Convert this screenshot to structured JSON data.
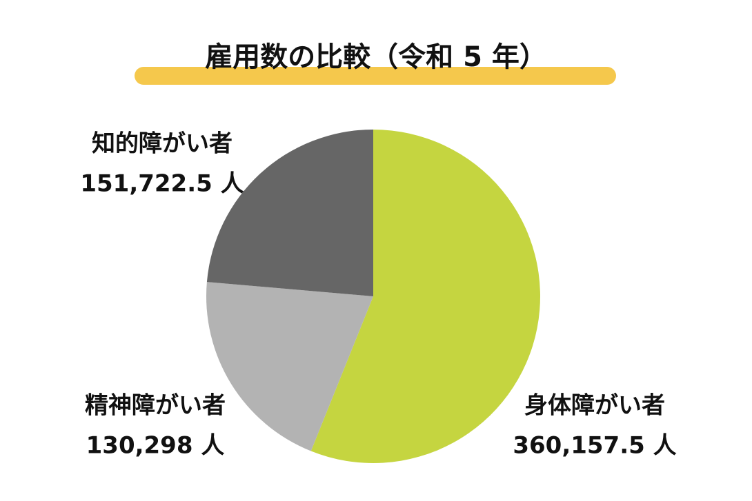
{
  "chart_data": {
    "type": "pie",
    "title": "雇用数の比較（令和 5 年）",
    "categories": [
      "身体障がい者",
      "精神障がい者",
      "知的障がい者"
    ],
    "values": [
      360157.5,
      130298,
      151722.5
    ],
    "value_labels": [
      "360,157.5 人",
      "130,298 人",
      "151,722.5 人"
    ],
    "colors": [
      "#c5d540",
      "#b3b3b3",
      "#666666"
    ]
  }
}
